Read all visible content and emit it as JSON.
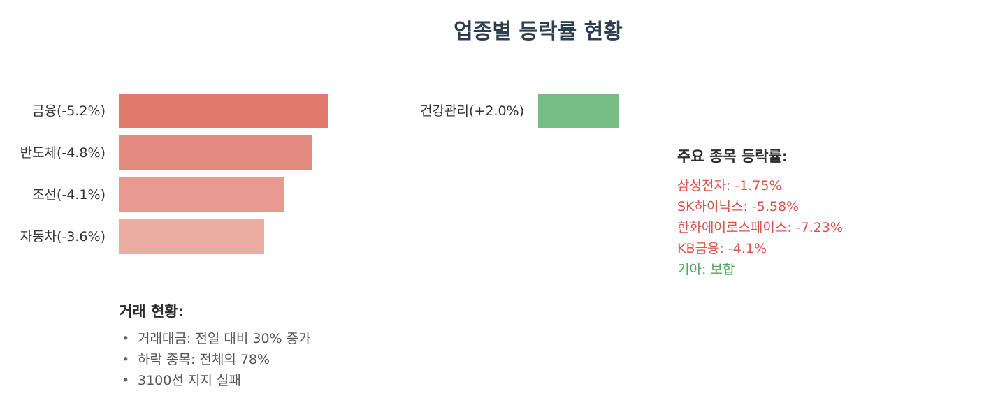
{
  "chart_data": {
    "type": "bar",
    "title": "업종별 등락률 현황",
    "series": [
      {
        "values": [
          {
            "category": "금융",
            "value": -5.2,
            "label": "금융(-5.2%)",
            "color": "#e07a6c"
          },
          {
            "category": "반도체",
            "value": -4.8,
            "label": "반도체(-4.8%)",
            "color": "#e48b81"
          },
          {
            "category": "조선",
            "value": -4.1,
            "label": "조선(-4.1%)",
            "color": "#e89a90"
          },
          {
            "category": "자동차",
            "value": -3.6,
            "label": "자동차(-3.6%)",
            "color": "#ebaca4"
          }
        ]
      },
      {
        "values": [
          {
            "category": "건강관리",
            "value": 2.0,
            "label": "건강관리(+2.0%)",
            "color": "#77bd86"
          }
        ]
      }
    ]
  },
  "stocks_panel": {
    "title": "주요 종목 등락률:",
    "items": [
      {
        "text": "삼성전자: -1.75%",
        "color": "#d9534a"
      },
      {
        "text": "SK하이닉스: -5.58%",
        "color": "#d9534a"
      },
      {
        "text": "한화에어로스페이스: -7.23%",
        "color": "#d9534a"
      },
      {
        "text": "KB금융: -4.1%",
        "color": "#d9534a"
      },
      {
        "text": "기아: 보합",
        "color": "#4caa5e"
      }
    ]
  },
  "trading_panel": {
    "title": "거래 현황:",
    "bullet": "•",
    "items": [
      "거래대금: 전일 대비 30% 증가",
      "하락 종목: 전체의 78%",
      "3100선 지지 실패"
    ]
  }
}
